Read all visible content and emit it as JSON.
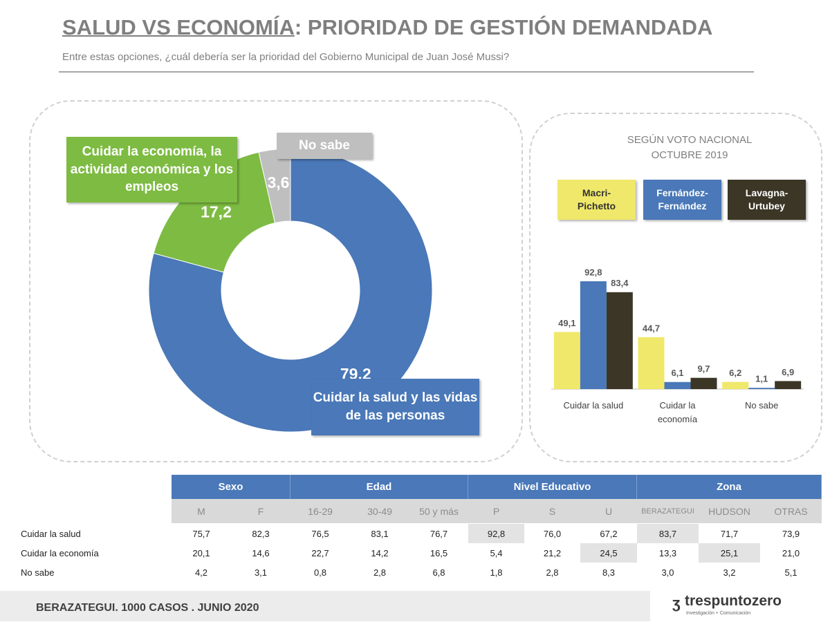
{
  "header": {
    "title_underlined": "SALUD VS ECONOMÍA",
    "title_rest": ": PRIORIDAD DE GESTIÓN DEMANDADA",
    "subtitle": "Entre estas opciones, ¿cuál debería ser la prioridad del Gobierno Municipal de Juan José Mussi?"
  },
  "chart_data": [
    {
      "type": "pie",
      "donut": true,
      "categories": [
        "Cuidar la salud y las vidas de las personas",
        "Cuidar la economía, la actividad económica y los empleos",
        "No sabe"
      ],
      "values": [
        79.2,
        17.2,
        3.6
      ],
      "value_labels": [
        "79,2",
        "17,2",
        "3,6"
      ],
      "colors": [
        "#4a78b8",
        "#7dbb42",
        "#bfbfbf"
      ]
    },
    {
      "type": "bar",
      "title": "SEGÚN VOTO NACIONAL OCTUBRE 2019",
      "categories": [
        "Cuidar la salud",
        "Cuidar la economía",
        "No sabe"
      ],
      "series": [
        {
          "name": "Macri-Pichetto",
          "color": "#f0e86a",
          "values": [
            49.1,
            44.7,
            6.2
          ],
          "value_labels": [
            "49,1",
            "44,7",
            "6,2"
          ]
        },
        {
          "name": "Fernández-Fernández",
          "color": "#4a78b8",
          "values": [
            92.8,
            6.1,
            1.1
          ],
          "value_labels": [
            "92,8",
            "6,1",
            "1,1"
          ]
        },
        {
          "name": "Lavagna-Urtubey",
          "color": "#3b3626",
          "values": [
            83.4,
            9.7,
            6.9
          ],
          "value_labels": [
            "83,4",
            "9,7",
            "6,9"
          ]
        }
      ]
    }
  ],
  "table": {
    "groups": [
      {
        "label": "Sexo",
        "span": 2
      },
      {
        "label": "Edad",
        "span": 3
      },
      {
        "label": "Nivel Educativo",
        "span": 3
      },
      {
        "label": "Zona",
        "span": 3
      }
    ],
    "columns": [
      "M",
      "F",
      "16-29",
      "30-49",
      "50 y más",
      "P",
      "S",
      "U",
      "BERAZATEGUI",
      "HUDSON",
      "OTRAS"
    ],
    "rows": [
      {
        "label": "Cuidar la salud",
        "cells": [
          "75,7",
          "82,3",
          "76,5",
          "83,1",
          "76,7",
          "92,8",
          "76,0",
          "67,2",
          "83,7",
          "71,7",
          "73,9"
        ]
      },
      {
        "label": "Cuidar la economía",
        "cells": [
          "20,1",
          "14,6",
          "22,7",
          "14,2",
          "16,5",
          "5,4",
          "21,2",
          "24,5",
          "13,3",
          "25,1",
          "21,0"
        ]
      },
      {
        "label": "No sabe",
        "cells": [
          "4,2",
          "3,1",
          "0,8",
          "2,8",
          "6,8",
          "1,8",
          "2,8",
          "8,3",
          "3,0",
          "3,2",
          "5,1"
        ]
      }
    ],
    "highlighted": [
      [
        0,
        5
      ],
      [
        0,
        8
      ],
      [
        1,
        7
      ],
      [
        1,
        9
      ]
    ]
  },
  "footer": {
    "text": "BERAZATEGUI. 1000 CASOS . JUNIO 2020",
    "brand": "trespuntozero",
    "tagline": "Investigación + Comunicación"
  }
}
